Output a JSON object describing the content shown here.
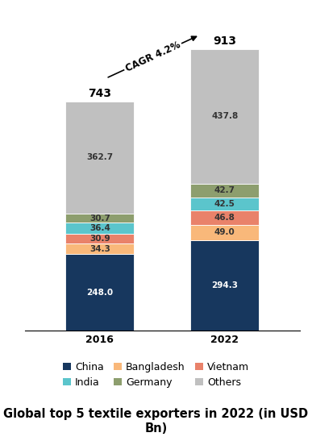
{
  "chart_data": {
    "type": "bar",
    "stacked": true,
    "data_labels": true,
    "title": "Global top 5 textile exporters in 2022 (in USD Bn)",
    "categories": [
      "2016",
      "2022"
    ],
    "series": [
      {
        "name": "China",
        "color": "#17375e",
        "values": [
          248.0,
          294.3
        ]
      },
      {
        "name": "Bangladesh",
        "color": "#f9b87a",
        "values": [
          34.3,
          49.0
        ]
      },
      {
        "name": "Vietnam",
        "color": "#e9826a",
        "values": [
          30.9,
          46.8
        ]
      },
      {
        "name": "India",
        "color": "#5bc5cc",
        "values": [
          36.4,
          42.5
        ]
      },
      {
        "name": "Germany",
        "color": "#8d9e6e",
        "values": [
          30.7,
          42.7
        ]
      },
      {
        "name": "Others",
        "color": "#c0c0c0",
        "values": [
          362.7,
          437.8
        ]
      }
    ],
    "totals": [
      743,
      913
    ],
    "annotations": [
      "CAGR 4.2%"
    ],
    "ylim": [
      0,
      1000
    ],
    "yticks": [],
    "tick_labels": "x",
    "legend": "lower center"
  }
}
